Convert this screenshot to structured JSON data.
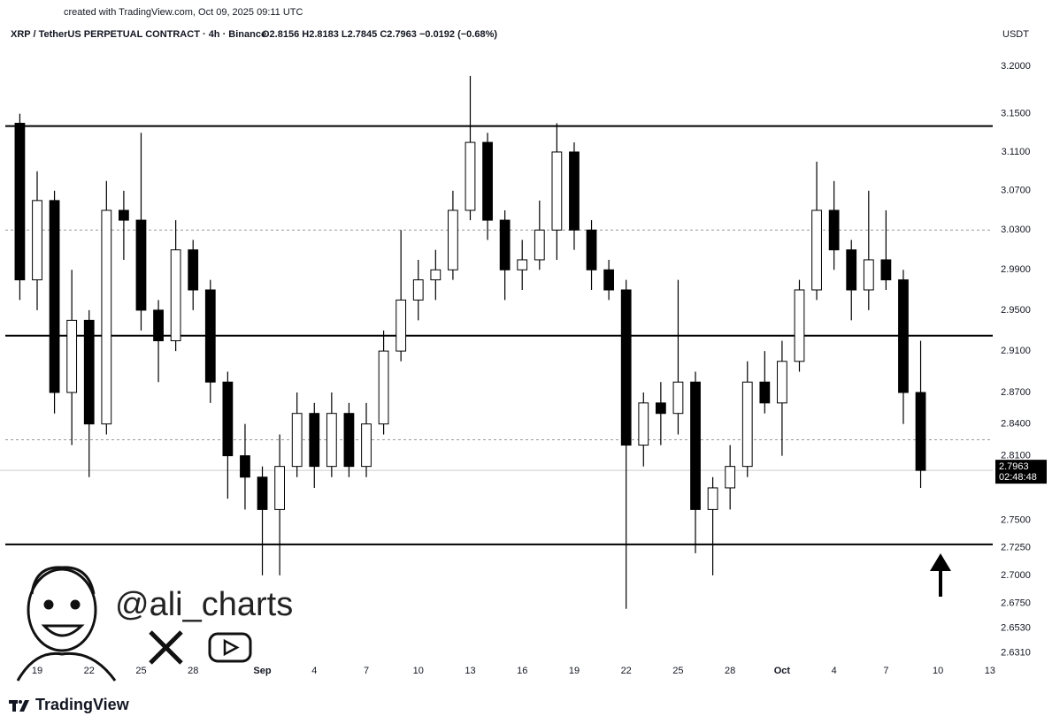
{
  "credit": "created with TradingView.com, Oct 09, 2025 09:11 UTC",
  "watermark": "@ali_charts",
  "footer": "TradingView",
  "chart_data": {
    "type": "candlestick",
    "title": "XRP / TetherUS PERPETUAL CONTRACT · 4h · Binance",
    "ohlc_label": "O2.8156  H2.8183  L2.7845  C2.7963  −0.0192 (−0.68%)",
    "currency": "USDT",
    "last_price": 2.7963,
    "countdown": "02:48:48",
    "log_scale": true,
    "up_color": "#ffffff",
    "down_color": "#000000",
    "outline_color": "#000000",
    "xlim": [
      -2.145,
      55.16
    ],
    "ylim": [
      2.626,
      3.224
    ],
    "xticks": [
      {
        "value": 0,
        "label": "19"
      },
      {
        "value": 3,
        "label": "22"
      },
      {
        "value": 6,
        "label": "25"
      },
      {
        "value": 9,
        "label": "28"
      },
      {
        "value": 13,
        "label": "Sep"
      },
      {
        "value": 16,
        "label": "4"
      },
      {
        "value": 19,
        "label": "7"
      },
      {
        "value": 22,
        "label": "10"
      },
      {
        "value": 25,
        "label": "13"
      },
      {
        "value": 28,
        "label": "16"
      },
      {
        "value": 31,
        "label": "19"
      },
      {
        "value": 34,
        "label": "22"
      },
      {
        "value": 37,
        "label": "25"
      },
      {
        "value": 40,
        "label": "28"
      },
      {
        "value": 43,
        "label": "Oct"
      },
      {
        "value": 46,
        "label": "4"
      },
      {
        "value": 49,
        "label": "7"
      },
      {
        "value": 52,
        "label": "10"
      },
      {
        "value": 55,
        "label": "13"
      }
    ],
    "yticks": [
      {
        "value": 3.2,
        "label": "3.2000"
      },
      {
        "value": 3.15,
        "label": "3.1500"
      },
      {
        "value": 3.11,
        "label": "3.1100"
      },
      {
        "value": 3.07,
        "label": "3.0700"
      },
      {
        "value": 3.03,
        "label": "3.0300"
      },
      {
        "value": 2.99,
        "label": "2.9900"
      },
      {
        "value": 2.95,
        "label": "2.9500"
      },
      {
        "value": 2.91,
        "label": "2.9100"
      },
      {
        "value": 2.87,
        "label": "2.8700"
      },
      {
        "value": 2.84,
        "label": "2.8400"
      },
      {
        "value": 2.81,
        "label": "2.8100"
      },
      {
        "value": 2.75,
        "label": "2.7500"
      },
      {
        "value": 2.725,
        "label": "2.7250"
      },
      {
        "value": 2.7,
        "label": "2.7000"
      },
      {
        "value": 2.675,
        "label": "2.6750"
      },
      {
        "value": 2.653,
        "label": "2.6530"
      },
      {
        "value": 2.631,
        "label": "2.6310"
      }
    ],
    "levels": [
      {
        "value": 3.137,
        "style": "solid"
      },
      {
        "value": 3.03,
        "style": "dotted"
      },
      {
        "value": 2.925,
        "style": "solid"
      },
      {
        "value": 2.825,
        "style": "dotted"
      },
      {
        "value": 2.728,
        "style": "solid"
      }
    ],
    "x": [
      -1,
      0,
      1,
      2,
      3,
      4,
      5,
      6,
      7,
      8,
      9,
      10,
      11,
      12,
      13,
      14,
      15,
      16,
      17,
      18,
      19,
      20,
      21,
      22,
      23,
      24,
      25,
      26,
      27,
      28,
      29,
      30,
      31,
      32,
      33,
      34,
      35,
      36,
      37,
      38,
      39,
      40,
      41,
      42,
      43,
      44,
      45,
      46,
      47,
      48,
      49,
      50,
      51
    ],
    "ohlc": [
      [
        3.14,
        3.15,
        2.96,
        2.98
      ],
      [
        2.98,
        3.09,
        2.95,
        3.06
      ],
      [
        3.06,
        3.07,
        2.85,
        2.87
      ],
      [
        2.87,
        2.99,
        2.82,
        2.94
      ],
      [
        2.94,
        2.95,
        2.79,
        2.84
      ],
      [
        2.84,
        3.08,
        2.83,
        3.05
      ],
      [
        3.05,
        3.07,
        3.0,
        3.04
      ],
      [
        3.04,
        3.13,
        2.93,
        2.95
      ],
      [
        2.95,
        2.96,
        2.88,
        2.92
      ],
      [
        2.92,
        3.04,
        2.91,
        3.01
      ],
      [
        3.01,
        3.02,
        2.95,
        2.97
      ],
      [
        2.97,
        2.98,
        2.86,
        2.88
      ],
      [
        2.88,
        2.89,
        2.77,
        2.81
      ],
      [
        2.81,
        2.84,
        2.76,
        2.79
      ],
      [
        2.79,
        2.8,
        2.7,
        2.76
      ],
      [
        2.76,
        2.83,
        2.7,
        2.8
      ],
      [
        2.8,
        2.87,
        2.79,
        2.85
      ],
      [
        2.85,
        2.86,
        2.78,
        2.8
      ],
      [
        2.8,
        2.87,
        2.79,
        2.85
      ],
      [
        2.85,
        2.86,
        2.79,
        2.8
      ],
      [
        2.8,
        2.86,
        2.79,
        2.84
      ],
      [
        2.84,
        2.93,
        2.83,
        2.91
      ],
      [
        2.91,
        3.03,
        2.9,
        2.96
      ],
      [
        2.96,
        3.0,
        2.94,
        2.98
      ],
      [
        2.98,
        3.01,
        2.96,
        2.99
      ],
      [
        2.99,
        3.07,
        2.98,
        3.05
      ],
      [
        3.05,
        3.19,
        3.04,
        3.12
      ],
      [
        3.12,
        3.13,
        3.02,
        3.04
      ],
      [
        3.04,
        3.05,
        2.96,
        2.99
      ],
      [
        2.99,
        3.02,
        2.97,
        3.0
      ],
      [
        3.0,
        3.06,
        2.99,
        3.03
      ],
      [
        3.03,
        3.14,
        3.0,
        3.11
      ],
      [
        3.11,
        3.12,
        3.01,
        3.03
      ],
      [
        3.03,
        3.04,
        2.97,
        2.99
      ],
      [
        2.99,
        3.0,
        2.96,
        2.97
      ],
      [
        2.97,
        2.98,
        2.67,
        2.82
      ],
      [
        2.82,
        2.87,
        2.8,
        2.86
      ],
      [
        2.86,
        2.88,
        2.82,
        2.85
      ],
      [
        2.85,
        2.98,
        2.83,
        2.88
      ],
      [
        2.88,
        2.89,
        2.72,
        2.76
      ],
      [
        2.76,
        2.79,
        2.7,
        2.78
      ],
      [
        2.78,
        2.82,
        2.76,
        2.8
      ],
      [
        2.8,
        2.9,
        2.79,
        2.88
      ],
      [
        2.88,
        2.91,
        2.85,
        2.86
      ],
      [
        2.86,
        2.92,
        2.81,
        2.9
      ],
      [
        2.9,
        2.98,
        2.89,
        2.97
      ],
      [
        2.97,
        3.1,
        2.96,
        3.05
      ],
      [
        3.05,
        3.08,
        2.99,
        3.01
      ],
      [
        3.01,
        3.02,
        2.94,
        2.97
      ],
      [
        2.97,
        3.07,
        2.95,
        3.0
      ],
      [
        3.0,
        3.05,
        2.97,
        2.98
      ],
      [
        2.98,
        2.99,
        2.84,
        2.87
      ],
      [
        2.87,
        2.92,
        2.78,
        2.7963
      ]
    ]
  }
}
